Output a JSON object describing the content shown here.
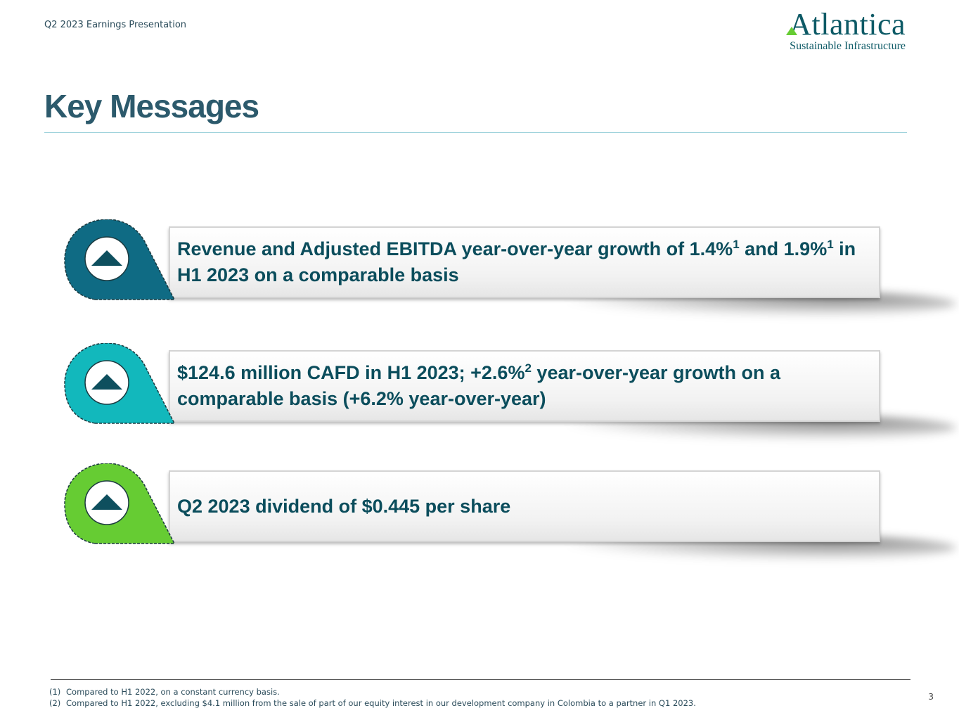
{
  "header": {
    "presentation": "Q2 2023 Earnings Presentation",
    "logo_name": "Atlantica",
    "logo_tagline": "Sustainable Infrastructure"
  },
  "title": "Key Messages",
  "messages": [
    {
      "color": "#0f6b84",
      "runs": [
        {
          "text": "Revenue and Adjusted EBITDA year-over-year growth of 1.4%"
        },
        {
          "text": "1",
          "superscript": true
        },
        {
          "text": " and 1.9%"
        },
        {
          "text": "1",
          "superscript": true
        },
        {
          "text": " in H1 2023 on a comparable basis"
        }
      ]
    },
    {
      "color": "#12b8bc",
      "runs": [
        {
          "text": "$124.6 million CAFD in H1 2023; +2.6%"
        },
        {
          "text": "2",
          "superscript": true
        },
        {
          "text": " year-over-year growth on a comparable basis (+6.2% year-over-year)"
        }
      ]
    },
    {
      "color": "#66cc33",
      "runs": [
        {
          "text": "Q2 2023 dividend of $0.445 per share"
        }
      ]
    }
  ],
  "footnotes": [
    {
      "marker": "(1)",
      "text": "Compared to H1 2022, on a constant currency basis."
    },
    {
      "marker": "(2)",
      "text": "Compared to H1 2022, excluding $4.1 million from the sale of part of our equity interest in our development company in Colombia to a partner in Q1 2023."
    }
  ],
  "page_number": "3"
}
